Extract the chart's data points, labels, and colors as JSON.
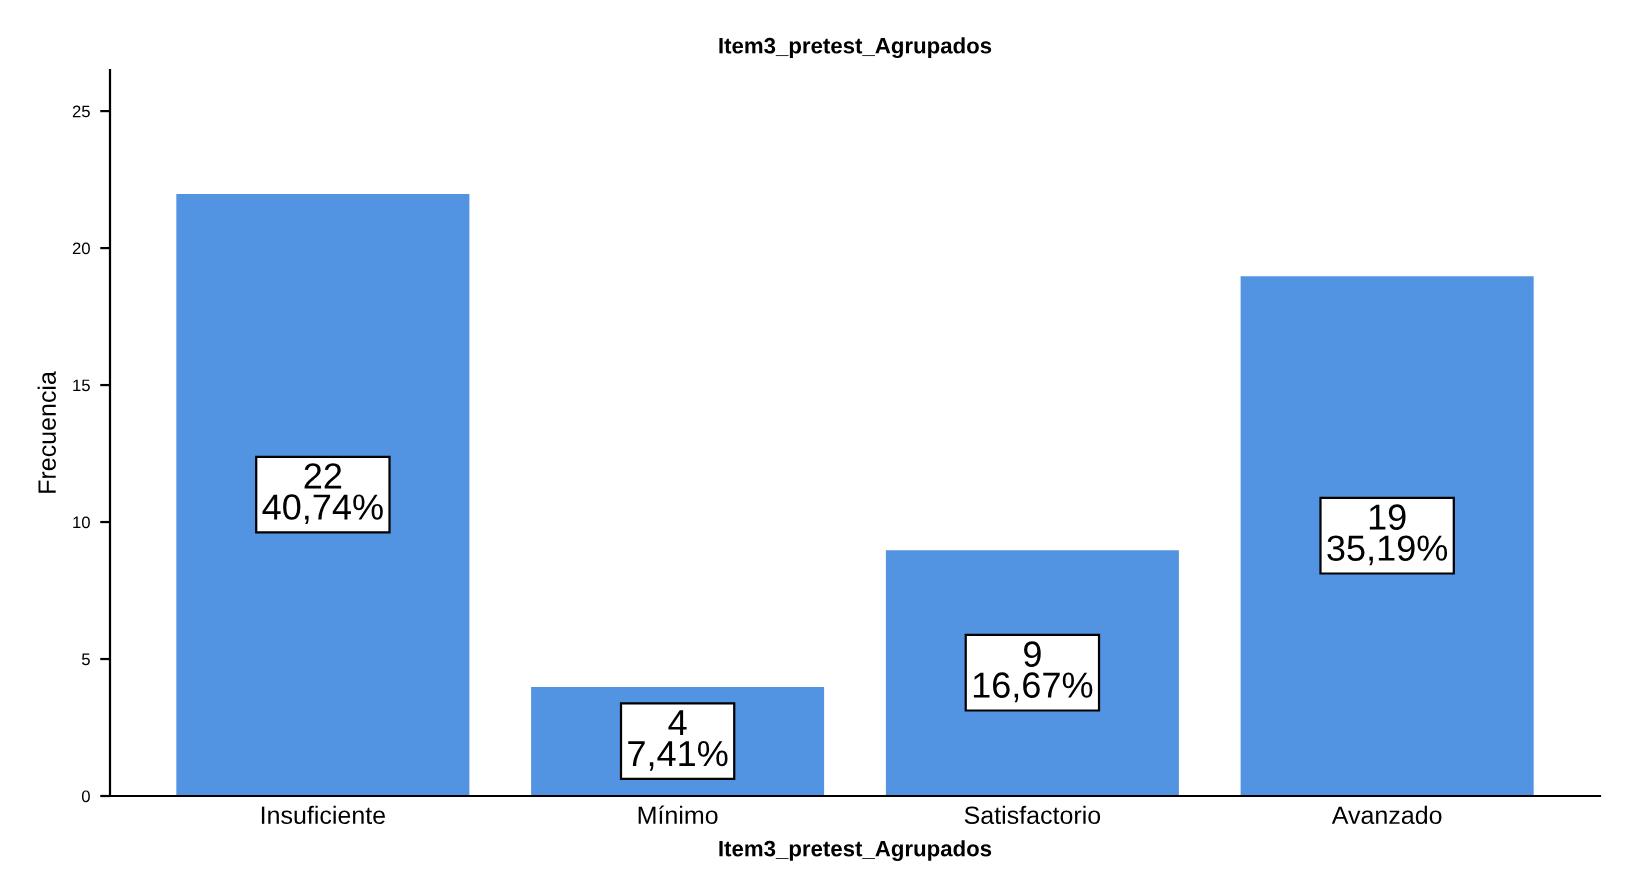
{
  "chart_data": {
    "type": "bar",
    "title": "Item3_pretest_Agrupados",
    "xlabel": "Item3_pretest_Agrupados",
    "ylabel": "Frecuencia",
    "categories": [
      "Insuficiente",
      "Mínimo",
      "Satisfactorio",
      "Avanzado"
    ],
    "values": [
      22,
      4,
      9,
      19
    ],
    "value_labels": [
      "22\n40,74%",
      "4\n7,41%",
      "9\n16,67%",
      "19\n35,19%"
    ],
    "color": "#5294e2",
    "ylim": [
      0,
      26.5
    ],
    "yticks": [
      0,
      5,
      10,
      15,
      20,
      25
    ],
    "grid": false,
    "legend": false
  }
}
